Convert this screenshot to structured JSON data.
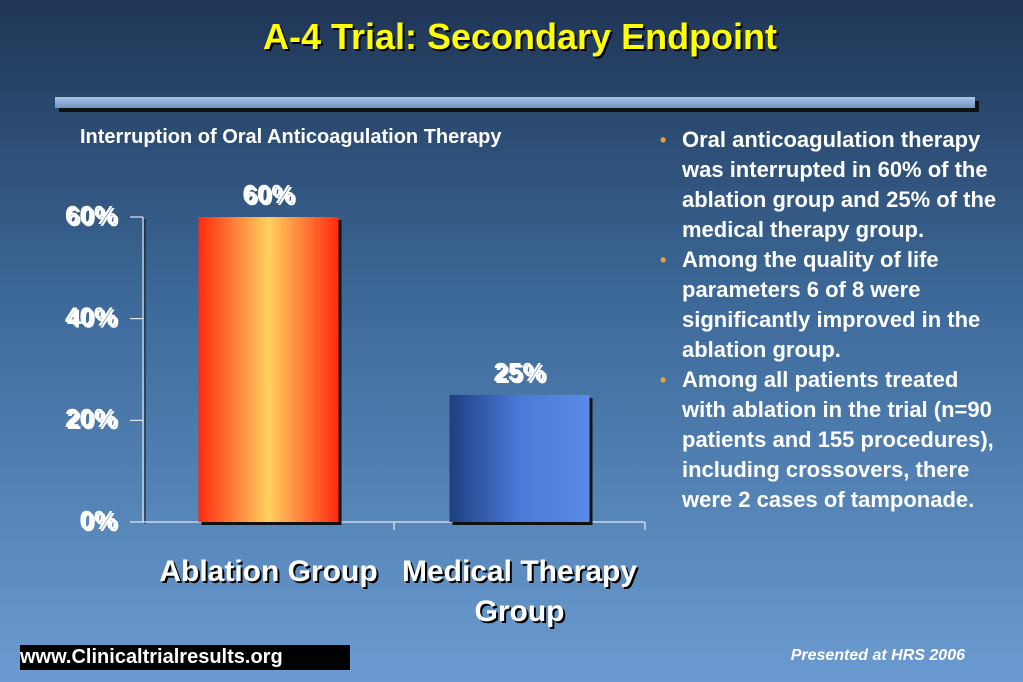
{
  "title": "A-4 Trial: Secondary Endpoint",
  "chart_data": {
    "type": "bar",
    "title": "Interruption of Oral Anticoagulation Therapy",
    "categories": [
      "Ablation Group",
      "Medical Therapy Group"
    ],
    "values": [
      60,
      25
    ],
    "value_labels": [
      "60%",
      "25%"
    ],
    "colors": [
      "#ff2a10",
      "#2f5bb8"
    ],
    "ylim": [
      0,
      60
    ],
    "yticks": [
      {
        "value": 0,
        "label": "0%"
      },
      {
        "value": 20,
        "label": "20%"
      },
      {
        "value": 40,
        "label": "40%"
      },
      {
        "value": 60,
        "label": "60%"
      }
    ]
  },
  "bullets": [
    "Oral anticoagulation therapy was interrupted in 60% of the ablation group and 25% of the medical therapy group.",
    "Among the quality of life parameters 6 of 8 were significantly improved in the ablation group.",
    "Among all patients treated with ablation in the trial (n=90 patients and 155 procedures), including crossovers, there were 2 cases of tamponade."
  ],
  "footer": {
    "prefix": "www.",
    "site": "Clinicaltrialresults.org",
    "note": "Presented at HRS 2006"
  }
}
